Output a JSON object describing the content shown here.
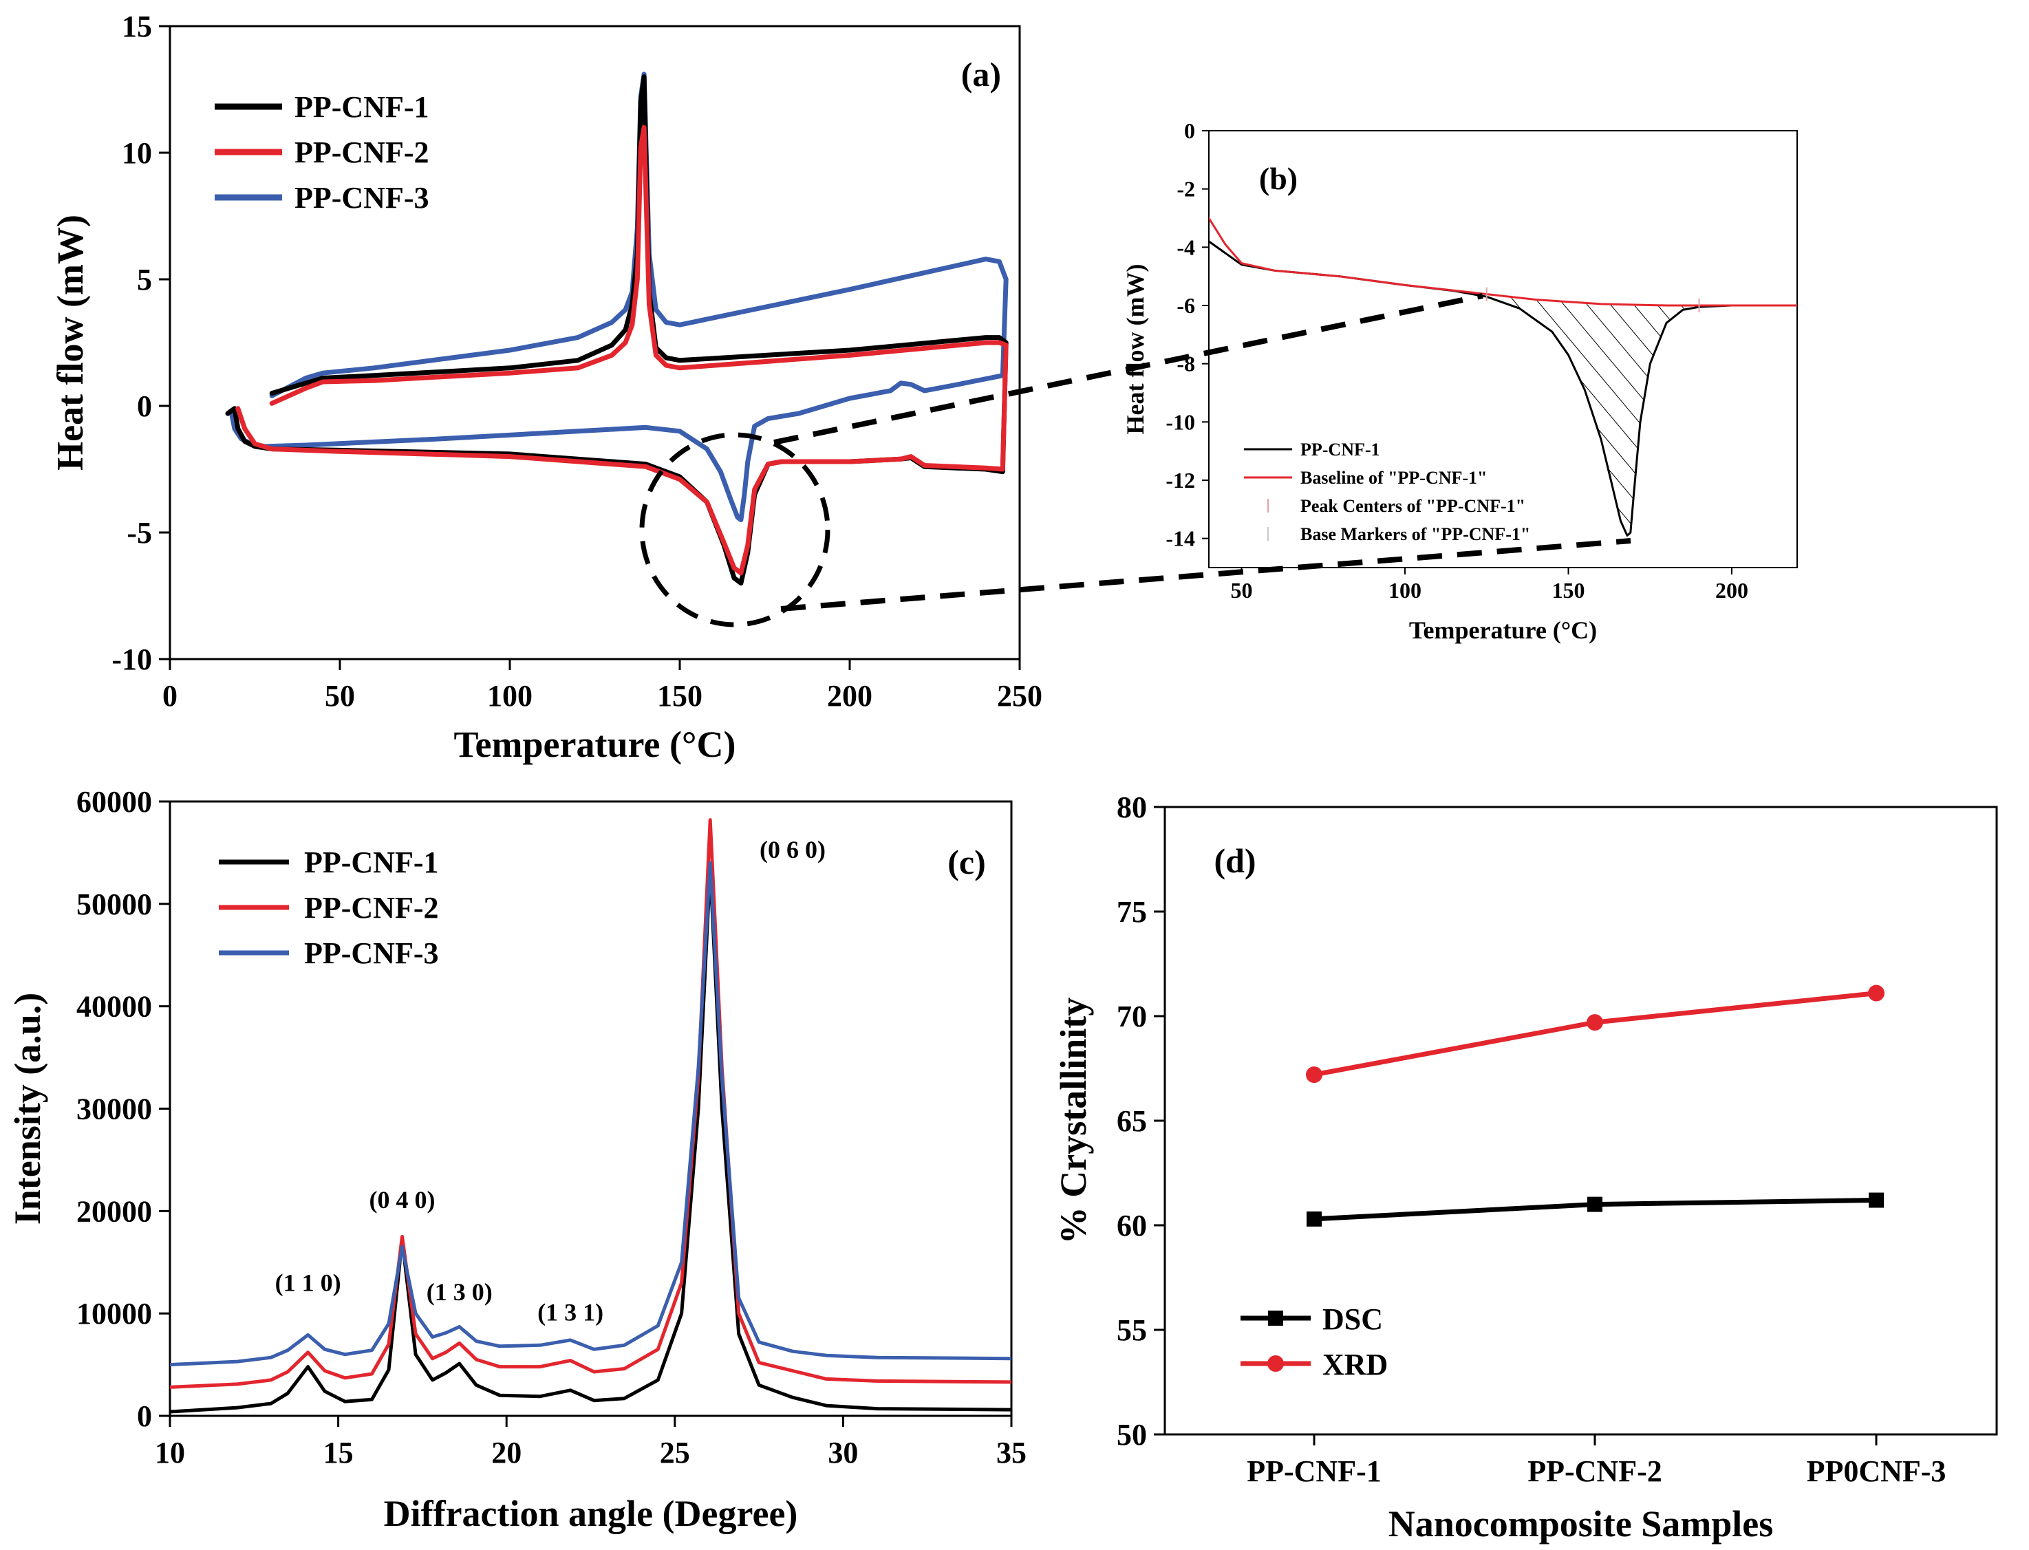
{
  "colors": {
    "series1": "#000000",
    "series2": "#e3262e",
    "series3": "#3b5fae",
    "baseline": "#e3262e"
  },
  "chart_data": [
    {
      "id": "a",
      "panel_label": "(a)",
      "type": "line",
      "xlabel": "Temperature (°C)",
      "ylabel": "Heat flow (mW)",
      "xlim": [
        0,
        250
      ],
      "ylim": [
        -10,
        15
      ],
      "xticks": [
        0,
        50,
        100,
        150,
        200,
        250
      ],
      "yticks": [
        -10,
        -5,
        0,
        5,
        10,
        15
      ],
      "legend_position": "top-left",
      "series": [
        {
          "name": "PP-CNF-1",
          "color": "#000000",
          "x": [
            17,
            19,
            20,
            22,
            25,
            30,
            50,
            100,
            140,
            150,
            158,
            163,
            166,
            168,
            170,
            172,
            176,
            180,
            200,
            215,
            218,
            222,
            240,
            245,
            246,
            244,
            240,
            200,
            150,
            146,
            143,
            141,
            139.5,
            138.5,
            137.5,
            136,
            134,
            130,
            120,
            100,
            60,
            45,
            40,
            30
          ],
          "y": [
            -0.3,
            -0.1,
            -0.9,
            -1.4,
            -1.6,
            -1.7,
            -1.75,
            -1.9,
            -2.3,
            -2.8,
            -3.8,
            -5.5,
            -6.8,
            -7.0,
            -5.8,
            -3.5,
            -2.3,
            -2.2,
            -2.2,
            -2.1,
            -2.05,
            -2.4,
            -2.5,
            -2.6,
            2.5,
            2.7,
            2.7,
            2.2,
            1.8,
            1.9,
            2.3,
            4.5,
            13.0,
            12.0,
            6.0,
            4.0,
            3.0,
            2.4,
            1.8,
            1.5,
            1.2,
            1.1,
            0.9,
            0.5
          ]
        },
        {
          "name": "PP-CNF-2",
          "color": "#e3262e",
          "x": [
            20,
            22,
            25,
            30,
            50,
            100,
            140,
            150,
            158,
            163,
            166,
            168,
            170,
            172,
            176,
            180,
            200,
            215,
            218,
            222,
            240,
            245,
            246,
            244,
            240,
            200,
            150,
            146,
            143,
            141,
            139.5,
            138.5,
            137.5,
            136,
            134,
            130,
            120,
            100,
            60,
            45,
            40,
            30
          ],
          "y": [
            -0.1,
            -0.9,
            -1.5,
            -1.7,
            -1.8,
            -2.0,
            -2.4,
            -2.9,
            -3.8,
            -5.4,
            -6.4,
            -6.6,
            -5.5,
            -3.3,
            -2.3,
            -2.2,
            -2.2,
            -2.1,
            -2.0,
            -2.35,
            -2.45,
            -2.5,
            2.4,
            2.5,
            2.5,
            2.0,
            1.5,
            1.6,
            2.0,
            4.0,
            11.0,
            10.2,
            5.0,
            3.2,
            2.5,
            2.0,
            1.5,
            1.3,
            1.0,
            0.95,
            0.7,
            0.1
          ]
        },
        {
          "name": "PP-CNF-3",
          "color": "#3b5fae",
          "x": [
            17,
            18,
            19,
            21,
            24,
            28,
            40,
            80,
            120,
            140,
            150,
            158,
            162,
            165,
            167,
            168,
            169,
            170,
            172,
            176,
            185,
            200,
            212,
            215,
            218,
            222,
            230,
            245,
            246,
            244,
            240,
            200,
            150,
            146,
            143,
            141,
            139.5,
            138.5,
            137.5,
            136,
            134,
            130,
            120,
            100,
            60,
            45,
            40,
            30
          ],
          "y": [
            -0.3,
            -0.2,
            -0.9,
            -1.3,
            -1.5,
            -1.6,
            -1.55,
            -1.3,
            -1.0,
            -0.85,
            -1.0,
            -1.7,
            -2.6,
            -3.7,
            -4.4,
            -4.5,
            -3.5,
            -2.2,
            -0.8,
            -0.5,
            -0.3,
            0.3,
            0.6,
            0.9,
            0.85,
            0.6,
            0.8,
            1.2,
            5.0,
            5.7,
            5.8,
            4.6,
            3.2,
            3.3,
            3.8,
            6.0,
            13.1,
            12.2,
            7.0,
            4.5,
            3.8,
            3.3,
            2.7,
            2.2,
            1.5,
            1.3,
            1.1,
            0.4
          ]
        }
      ]
    },
    {
      "id": "b",
      "panel_label": "(b)",
      "type": "line",
      "xlabel": "Temperature (°C)",
      "ylabel": "Heat flow (mW)",
      "xlim": [
        40,
        220
      ],
      "ylim": [
        -15,
        0
      ],
      "xticks": [
        50,
        100,
        150,
        200
      ],
      "yticks": [
        0,
        -2,
        -4,
        -6,
        -8,
        -10,
        -12,
        -14
      ],
      "legend_position": "bottom-left",
      "legend": [
        "PP-CNF-1",
        "Baseline of \"PP-CNF-1\"",
        "Peak Centers of \"PP-CNF-1\"",
        "Base Markers of \"PP-CNF-1\""
      ],
      "series": [
        {
          "name": "PP-CNF-1",
          "color": "#000000",
          "x": [
            40,
            45,
            50,
            60,
            80,
            100,
            115,
            125,
            135,
            145,
            150,
            155,
            160,
            163,
            166,
            168,
            169,
            170,
            172,
            175,
            180,
            185,
            190,
            200,
            220
          ],
          "y": [
            -3.8,
            -4.2,
            -4.6,
            -4.8,
            -5.0,
            -5.3,
            -5.5,
            -5.7,
            -6.1,
            -6.9,
            -7.7,
            -8.9,
            -10.6,
            -12.0,
            -13.4,
            -13.9,
            -13.8,
            -12.5,
            -10.0,
            -8.0,
            -6.6,
            -6.15,
            -6.05,
            -6.0,
            -6.0
          ]
        },
        {
          "name": "Baseline of \"PP-CNF-1\"",
          "color": "#e3262e",
          "x": [
            40,
            45,
            50,
            60,
            80,
            100,
            120,
            140,
            160,
            180,
            190,
            200,
            220
          ],
          "y": [
            -3.0,
            -3.9,
            -4.55,
            -4.8,
            -5.0,
            -5.3,
            -5.55,
            -5.8,
            -5.95,
            -6.0,
            -6.0,
            -6.0,
            -6.0
          ]
        }
      ]
    },
    {
      "id": "c",
      "panel_label": "(c)",
      "type": "line",
      "xlabel": "Diffraction angle (Degree)",
      "ylabel": "Intensity (a.u.)",
      "xlim": [
        10,
        35
      ],
      "ylim": [
        0,
        60000
      ],
      "xticks": [
        10,
        15,
        20,
        25,
        30,
        35
      ],
      "yticks": [
        0,
        10000,
        20000,
        30000,
        40000,
        50000,
        60000
      ],
      "legend_position": "top-left",
      "annotations": [
        "(1 1 0)",
        "(0 4 0)",
        "(1 3 0)",
        "(1 3 1)",
        "(0 6 0)"
      ],
      "series": [
        {
          "name": "PP-CNF-1",
          "color": "#000000",
          "x": [
            10,
            12,
            13,
            13.5,
            14.1,
            14.6,
            15.2,
            16,
            16.5,
            16.9,
            17.3,
            17.8,
            18.2,
            18.6,
            19.1,
            19.8,
            21,
            21.9,
            22.6,
            23.5,
            24.5,
            25.2,
            25.7,
            26.05,
            26.4,
            26.9,
            27.5,
            28.5,
            29.5,
            31,
            35
          ],
          "y": [
            400,
            800,
            1200,
            2200,
            4800,
            2400,
            1400,
            1600,
            4500,
            17200,
            6000,
            3500,
            4200,
            5100,
            3000,
            2000,
            1900,
            2500,
            1500,
            1700,
            3500,
            10000,
            30000,
            53500,
            30000,
            8000,
            3000,
            1800,
            1000,
            700,
            600
          ]
        },
        {
          "name": "PP-CNF-2",
          "color": "#e3262e",
          "x": [
            10,
            12,
            13,
            13.5,
            14.1,
            14.6,
            15.2,
            16,
            16.5,
            16.9,
            17.3,
            17.8,
            18.2,
            18.6,
            19.1,
            19.8,
            21,
            21.9,
            22.6,
            23.5,
            24.5,
            25.2,
            25.7,
            26.05,
            26.4,
            26.9,
            27.5,
            28.5,
            29.5,
            31,
            35
          ],
          "y": [
            2800,
            3100,
            3500,
            4300,
            6200,
            4400,
            3700,
            4100,
            7000,
            17500,
            8000,
            5600,
            6200,
            7100,
            5500,
            4800,
            4800,
            5400,
            4300,
            4600,
            6500,
            13000,
            33000,
            58200,
            34000,
            10000,
            5200,
            4400,
            3600,
            3400,
            3300
          ]
        },
        {
          "name": "PP-CNF-3",
          "color": "#3b5fae",
          "x": [
            10,
            12,
            13,
            13.5,
            14.1,
            14.6,
            15.2,
            16,
            16.5,
            16.9,
            17.3,
            17.8,
            18.2,
            18.6,
            19.1,
            19.8,
            21,
            21.9,
            22.6,
            23.5,
            24.5,
            25.2,
            25.7,
            26.05,
            26.4,
            26.9,
            27.5,
            28.5,
            29.5,
            31,
            35
          ],
          "y": [
            5000,
            5300,
            5700,
            6400,
            7900,
            6500,
            6000,
            6400,
            9000,
            16500,
            10000,
            7700,
            8100,
            8700,
            7300,
            6800,
            6900,
            7400,
            6500,
            6900,
            8800,
            15000,
            34000,
            54000,
            33000,
            11500,
            7200,
            6300,
            5900,
            5700,
            5600
          ]
        }
      ]
    },
    {
      "id": "d",
      "panel_label": "(d)",
      "type": "line",
      "xlabel": "Nanocomposite Samples",
      "ylabel": "% Crystallinity",
      "categories": [
        "PP-CNF-1",
        "PP-CNF-2",
        "PP0CNF-3"
      ],
      "ylim": [
        50,
        80
      ],
      "yticks": [
        50,
        55,
        60,
        65,
        70,
        75,
        80
      ],
      "legend_position": "bottom-left",
      "series": [
        {
          "name": "DSC",
          "color": "#000000",
          "marker": "square",
          "values": [
            60.3,
            61.0,
            61.2
          ]
        },
        {
          "name": "XRD",
          "color": "#e3262e",
          "marker": "circle",
          "values": [
            67.2,
            69.7,
            71.1
          ]
        }
      ]
    }
  ]
}
